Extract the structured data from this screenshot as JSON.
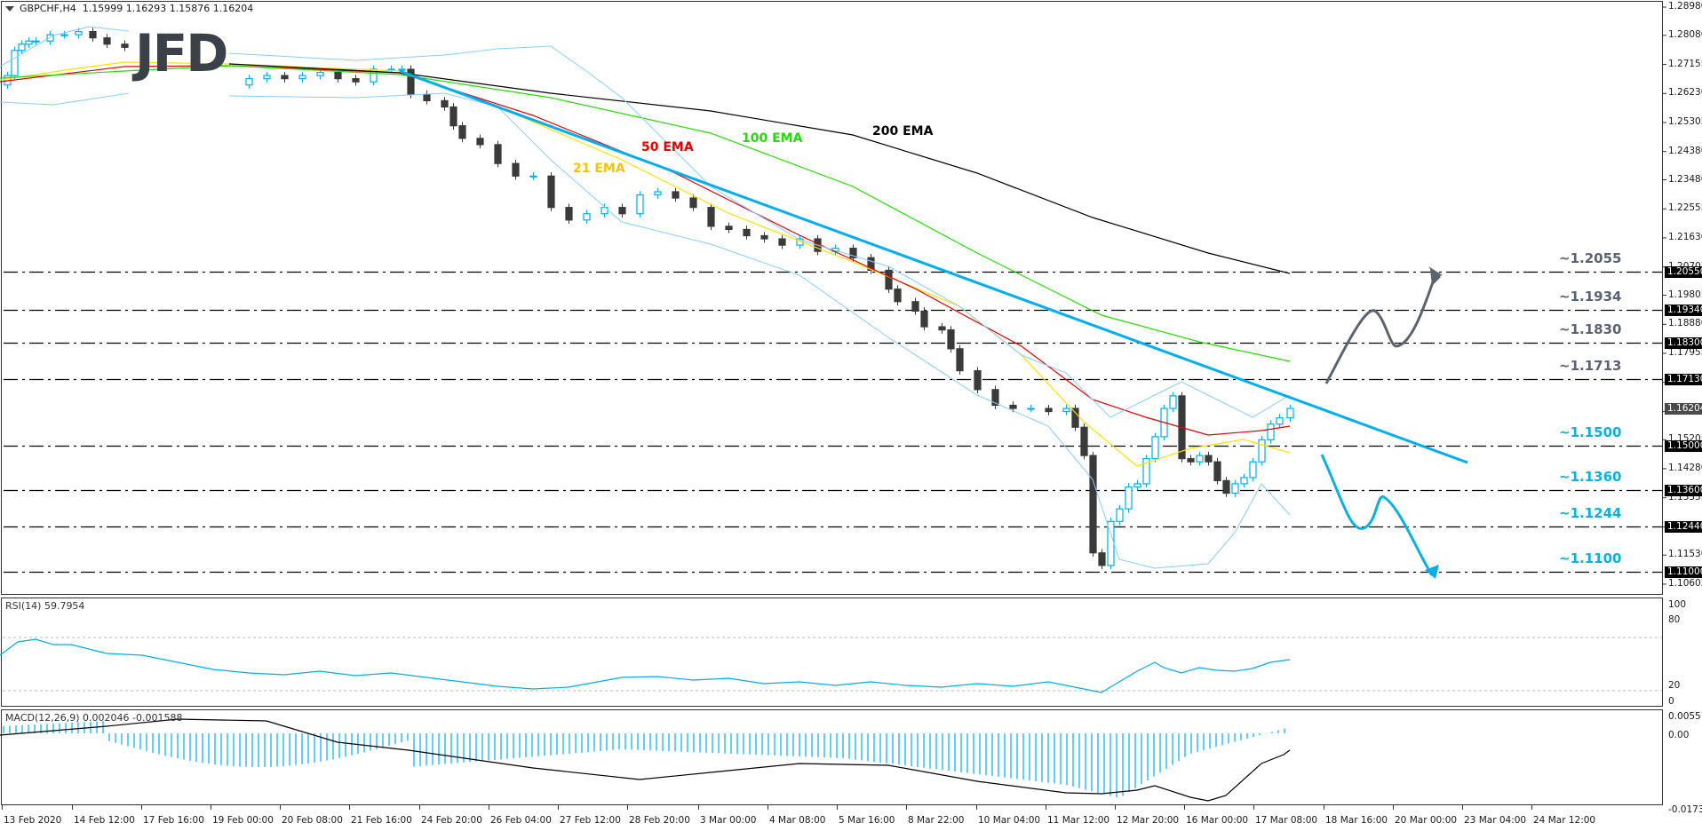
{
  "header": {
    "symbol": "GBPCHF,H4",
    "ohlc": "1.15999 1.16293 1.15876 1.16204",
    "logo": "JFD"
  },
  "colors": {
    "bull_candle": "#00AEEF",
    "bear_candle": "#3a3a3a",
    "ema21": "#FFE000",
    "ema50": "#E00000",
    "ema100": "#22DD00",
    "ema200": "#000000",
    "bollinger": "#87CEFA",
    "trendline": "#00AEEF",
    "resistance_label": "#5a6470",
    "support_label": "#0BB0E0",
    "rsi_line": "#00AEEF",
    "macd_hist": "#00AEEF",
    "macd_signal": "#000000"
  },
  "price_axis": {
    "ticks": [
      "1.28980",
      "1.28080",
      "1.27155",
      "1.26230",
      "1.25305",
      "1.24380",
      "1.23480",
      "1.22555",
      "1.21630",
      "1.20705",
      "1.19805",
      "1.18880",
      "1.17955",
      "1.17030",
      "1.16105",
      "1.15205",
      "1.14280",
      "1.13355",
      "1.12430",
      "1.11530",
      "1.10605"
    ],
    "boxed": [
      {
        "label": "1.20550",
        "price": 1.2055
      },
      {
        "label": "1.19340",
        "price": 1.1934
      },
      {
        "label": "1.18300",
        "price": 1.183
      },
      {
        "label": "1.17130",
        "price": 1.1713
      },
      {
        "label": "1.15000",
        "price": 1.15
      },
      {
        "label": "1.13600",
        "price": 1.136
      },
      {
        "label": "1.12440",
        "price": 1.1244
      },
      {
        "label": "1.11000",
        "price": 1.11
      }
    ],
    "current": {
      "label": "1.16204",
      "price": 1.16204
    }
  },
  "levels": [
    {
      "label": "~1.2055",
      "price": 1.2055,
      "type": "resistance"
    },
    {
      "label": "~1.1934",
      "price": 1.1934,
      "type": "resistance"
    },
    {
      "label": "~1.1830",
      "price": 1.183,
      "type": "resistance"
    },
    {
      "label": "~1.1713",
      "price": 1.1713,
      "type": "resistance"
    },
    {
      "label": "~1.1500",
      "price": 1.15,
      "type": "support"
    },
    {
      "label": "~1.1360",
      "price": 1.136,
      "type": "support"
    },
    {
      "label": "~1.1244",
      "price": 1.1244,
      "type": "support"
    },
    {
      "label": "~1.1100",
      "price": 1.11,
      "type": "support"
    }
  ],
  "ema_labels": {
    "ema21": "21 EMA",
    "ema50": "50 EMA",
    "ema100": "100 EMA",
    "ema200": "200 EMA"
  },
  "rsi": {
    "label": "RSI(14) 59.7954",
    "axis": [
      "100",
      "80",
      "20",
      "0"
    ]
  },
  "macd": {
    "label": "MACD(12,26,9) 0.002046 -0.001588",
    "axis": [
      "0.005513",
      "0.00",
      "-0.017373"
    ]
  },
  "time_axis": [
    {
      "label": "13 Feb 2020",
      "x": 2
    },
    {
      "label": "14 Feb 12:00",
      "x": 66
    },
    {
      "label": "17 Feb 16:00",
      "x": 130
    },
    {
      "label": "19 Feb 00:00",
      "x": 194
    },
    {
      "label": "20 Feb 08:00",
      "x": 258
    },
    {
      "label": "21 Feb 16:00",
      "x": 322
    },
    {
      "label": "24 Feb 20:00",
      "x": 386
    },
    {
      "label": "26 Feb 04:00",
      "x": 450
    },
    {
      "label": "27 Feb 12:00",
      "x": 514
    },
    {
      "label": "28 Feb 20:00",
      "x": 578
    },
    {
      "label": "3 Mar 00:00",
      "x": 643
    },
    {
      "label": "4 Mar 08:00",
      "x": 707
    },
    {
      "label": "5 Mar 16:00",
      "x": 771
    },
    {
      "label": "8 Mar 22:00",
      "x": 835
    },
    {
      "label": "10 Mar 04:00",
      "x": 899
    },
    {
      "label": "11 Mar 12:00",
      "x": 963
    },
    {
      "label": "12 Mar 20:00",
      "x": 1027
    },
    {
      "label": "16 Mar 00:00",
      "x": 1091
    },
    {
      "label": "17 Mar 08:00",
      "x": 1155
    },
    {
      "label": "18 Mar 16:00",
      "x": 1219
    },
    {
      "label": "20 Mar 00:00",
      "x": 1283
    },
    {
      "label": "23 Mar 04:00",
      "x": 1347
    },
    {
      "label": "24 Mar 12:00",
      "x": 1411
    }
  ],
  "chart_data": {
    "type": "candlestick",
    "title": "GBPCHF,H4 1.15999 1.16293 1.15876 1.16204",
    "xlabel": "",
    "ylabel": "",
    "ylim": [
      1.10605,
      1.2898
    ],
    "x_ticks": [
      "13 Feb 2020",
      "14 Feb 12:00",
      "17 Feb 16:00",
      "19 Feb 00:00",
      "20 Feb 08:00",
      "21 Feb 16:00",
      "24 Feb 20:00",
      "26 Feb 04:00",
      "27 Feb 12:00",
      "28 Feb 20:00",
      "3 Mar 00:00",
      "4 Mar 08:00",
      "5 Mar 16:00",
      "8 Mar 22:00",
      "10 Mar 04:00",
      "11 Mar 12:00",
      "12 Mar 20:00",
      "16 Mar 00:00",
      "17 Mar 08:00",
      "18 Mar 16:00",
      "20 Mar 00:00",
      "23 Mar 04:00",
      "24 Mar 12:00"
    ],
    "close_path": [
      [
        0,
        1.265
      ],
      [
        8,
        1.268
      ],
      [
        16,
        1.276
      ],
      [
        24,
        1.278
      ],
      [
        32,
        1.279
      ],
      [
        40,
        1.279
      ],
      [
        56,
        1.281
      ],
      [
        72,
        1.281
      ],
      [
        88,
        1.282
      ],
      [
        104,
        1.28
      ],
      [
        120,
        1.278
      ],
      [
        140,
        1.277
      ],
      [
        258,
        1.265
      ],
      [
        280,
        1.267
      ],
      [
        300,
        1.268
      ],
      [
        320,
        1.267
      ],
      [
        340,
        1.268
      ],
      [
        360,
        1.269
      ],
      [
        380,
        1.267
      ],
      [
        400,
        1.266
      ],
      [
        420,
        1.27
      ],
      [
        440,
        1.27
      ],
      [
        452,
        1.27
      ],
      [
        462,
        1.262
      ],
      [
        480,
        1.26
      ],
      [
        500,
        1.258
      ],
      [
        510,
        1.252
      ],
      [
        520,
        1.248
      ],
      [
        540,
        1.246
      ],
      [
        560,
        1.24
      ],
      [
        580,
        1.236
      ],
      [
        600,
        1.236
      ],
      [
        620,
        1.226
      ],
      [
        640,
        1.222
      ],
      [
        660,
        1.224
      ],
      [
        680,
        1.226
      ],
      [
        700,
        1.224
      ],
      [
        720,
        1.23
      ],
      [
        740,
        1.231
      ],
      [
        760,
        1.229
      ],
      [
        780,
        1.226
      ],
      [
        800,
        1.22
      ],
      [
        820,
        1.219
      ],
      [
        840,
        1.217
      ],
      [
        860,
        1.216
      ],
      [
        880,
        1.214
      ],
      [
        900,
        1.216
      ],
      [
        920,
        1.212
      ],
      [
        940,
        1.213
      ],
      [
        960,
        1.21
      ],
      [
        980,
        1.206
      ],
      [
        1000,
        1.2
      ],
      [
        1010,
        1.196
      ],
      [
        1030,
        1.193
      ],
      [
        1040,
        1.188
      ],
      [
        1060,
        1.187
      ],
      [
        1070,
        1.181
      ],
      [
        1080,
        1.174
      ],
      [
        1100,
        1.168
      ],
      [
        1120,
        1.163
      ],
      [
        1140,
        1.162
      ],
      [
        1160,
        1.162
      ],
      [
        1180,
        1.161
      ],
      [
        1200,
        1.162
      ],
      [
        1210,
        1.156
      ],
      [
        1220,
        1.147
      ],
      [
        1230,
        1.116
      ],
      [
        1240,
        1.112
      ],
      [
        1250,
        1.126
      ],
      [
        1260,
        1.13
      ],
      [
        1270,
        1.137
      ],
      [
        1280,
        1.138
      ],
      [
        1290,
        1.146
      ],
      [
        1300,
        1.153
      ],
      [
        1310,
        1.162
      ],
      [
        1320,
        1.166
      ],
      [
        1330,
        1.146
      ],
      [
        1340,
        1.145
      ],
      [
        1350,
        1.147
      ],
      [
        1360,
        1.145
      ],
      [
        1370,
        1.139
      ],
      [
        1380,
        1.135
      ],
      [
        1390,
        1.138
      ],
      [
        1400,
        1.14
      ],
      [
        1410,
        1.145
      ],
      [
        1420,
        1.152
      ],
      [
        1430,
        1.157
      ],
      [
        1440,
        1.159
      ],
      [
        1452,
        1.162
      ]
    ],
    "series": [
      {
        "name": "21 EMA",
        "color": "#FFE000"
      },
      {
        "name": "50 EMA",
        "color": "#E00000"
      },
      {
        "name": "100 EMA",
        "color": "#22DD00"
      },
      {
        "name": "200 EMA",
        "color": "#000000"
      },
      {
        "name": "Bollinger Bands",
        "color": "#87CEFA"
      }
    ],
    "horizontal_levels": [
      1.2055,
      1.1934,
      1.183,
      1.1713,
      1.15,
      1.136,
      1.1244,
      1.11
    ],
    "trendline": {
      "from": {
        "x_label": "26 Feb 04:00",
        "price": 1.27
      },
      "to": {
        "x_label": "beyond 24 Mar 12:00",
        "price": 1.148
      }
    },
    "scenarios": [
      {
        "name": "bullish",
        "path_prices": [
          1.1713,
          1.1934,
          1.183,
          1.2055
        ]
      },
      {
        "name": "bearish",
        "path_prices": [
          1.15,
          1.1244,
          1.136,
          1.11
        ]
      }
    ],
    "last": {
      "open": 1.15999,
      "high": 1.16293,
      "low": 1.15876,
      "close": 1.16204
    },
    "indicators": {
      "rsi": {
        "period": 14,
        "value": 59.7954,
        "levels": [
          80,
          20
        ],
        "ylim": [
          0,
          100
        ]
      },
      "macd": {
        "params": [
          12,
          26,
          9
        ],
        "main": 0.002046,
        "signal": -0.001588,
        "ylim": [
          -0.017373,
          0.005513
        ]
      }
    },
    "grid": false,
    "legend": "none"
  }
}
